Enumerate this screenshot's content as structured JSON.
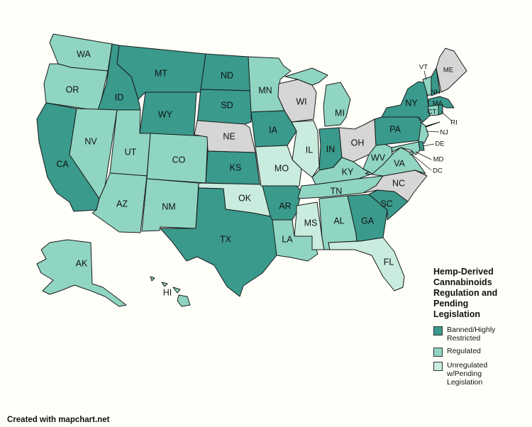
{
  "legend": {
    "title": "Hemp-Derived\nCannabinoids\nRegulation and\nPending\nLegislation",
    "items": [
      {
        "key": "banned",
        "label": "Banned/Highly\nRestricted",
        "color": "#3a9a8c"
      },
      {
        "key": "regulated",
        "label": "Regulated",
        "color": "#8fd5c2"
      },
      {
        "key": "pending",
        "label": "Unregulated\nw/Pending\nLegislation",
        "color": "#c9ecdf"
      }
    ],
    "no_action_color": "#d6d6d6"
  },
  "credit": "Created with mapchart.net",
  "states": [
    {
      "abbr": "WA",
      "status": "regulated"
    },
    {
      "abbr": "OR",
      "status": "regulated"
    },
    {
      "abbr": "CA",
      "status": "banned"
    },
    {
      "abbr": "ID",
      "status": "banned"
    },
    {
      "abbr": "NV",
      "status": "regulated"
    },
    {
      "abbr": "MT",
      "status": "banned"
    },
    {
      "abbr": "WY",
      "status": "banned"
    },
    {
      "abbr": "UT",
      "status": "regulated"
    },
    {
      "abbr": "AZ",
      "status": "regulated"
    },
    {
      "abbr": "CO",
      "status": "regulated"
    },
    {
      "abbr": "NM",
      "status": "regulated"
    },
    {
      "abbr": "ND",
      "status": "banned"
    },
    {
      "abbr": "SD",
      "status": "banned"
    },
    {
      "abbr": "NE",
      "status": "none"
    },
    {
      "abbr": "KS",
      "status": "banned"
    },
    {
      "abbr": "OK",
      "status": "pending"
    },
    {
      "abbr": "TX",
      "status": "banned"
    },
    {
      "abbr": "MN",
      "status": "regulated"
    },
    {
      "abbr": "IA",
      "status": "banned"
    },
    {
      "abbr": "MO",
      "status": "pending"
    },
    {
      "abbr": "AR",
      "status": "banned"
    },
    {
      "abbr": "LA",
      "status": "regulated"
    },
    {
      "abbr": "WI",
      "status": "none"
    },
    {
      "abbr": "IL",
      "status": "pending"
    },
    {
      "abbr": "MS",
      "status": "pending"
    },
    {
      "abbr": "MI",
      "status": "regulated"
    },
    {
      "abbr": "IN",
      "status": "banned"
    },
    {
      "abbr": "OH",
      "status": "none"
    },
    {
      "abbr": "KY",
      "status": "regulated"
    },
    {
      "abbr": "TN",
      "status": "regulated"
    },
    {
      "abbr": "AL",
      "status": "regulated"
    },
    {
      "abbr": "GA",
      "status": "banned"
    },
    {
      "abbr": "FL",
      "status": "pending"
    },
    {
      "abbr": "SC",
      "status": "banned"
    },
    {
      "abbr": "NC",
      "status": "none"
    },
    {
      "abbr": "VA",
      "status": "regulated"
    },
    {
      "abbr": "WV",
      "status": "regulated"
    },
    {
      "abbr": "PA",
      "status": "banned"
    },
    {
      "abbr": "NY",
      "status": "banned"
    },
    {
      "abbr": "VT",
      "status": "regulated"
    },
    {
      "abbr": "NH",
      "status": "banned"
    },
    {
      "abbr": "ME",
      "status": "none"
    },
    {
      "abbr": "MA",
      "status": "banned"
    },
    {
      "abbr": "CT",
      "status": "regulated"
    },
    {
      "abbr": "RI",
      "status": "banned"
    },
    {
      "abbr": "NJ",
      "status": "regulated"
    },
    {
      "abbr": "DE",
      "status": "banned"
    },
    {
      "abbr": "MD",
      "status": "regulated"
    },
    {
      "abbr": "DC",
      "status": "regulated"
    },
    {
      "abbr": "AK",
      "status": "regulated"
    },
    {
      "abbr": "HI",
      "status": "regulated"
    }
  ]
}
